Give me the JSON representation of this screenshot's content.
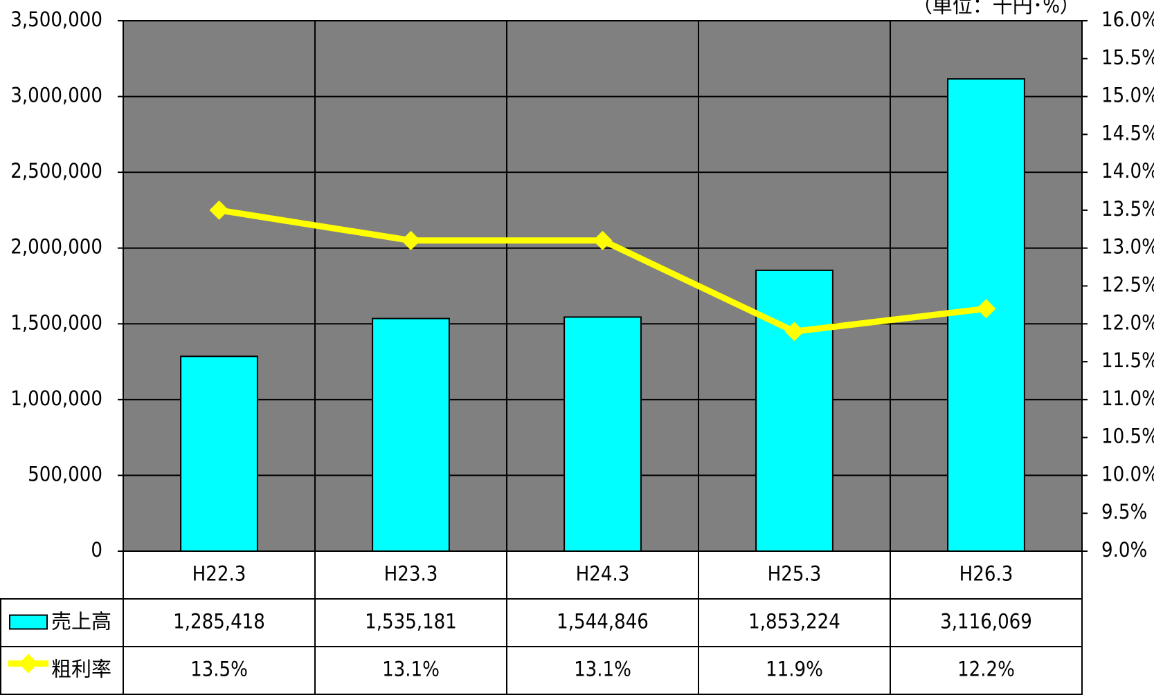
{
  "chart_data": {
    "type": "bar_line_table",
    "annotation": "（単位：千円･%）",
    "categories": [
      "H22.3",
      "H23.3",
      "H24.3",
      "H25.3",
      "H26.3"
    ],
    "series": [
      {
        "name": "売上高",
        "type": "bar",
        "color": "#00ffff",
        "axis": "y",
        "values": [
          1285418,
          1535181,
          1544846,
          1853224,
          3116069
        ],
        "value_labels": [
          "1,285,418",
          "1,535,181",
          "1,544,846",
          "1,853,224",
          "3,116,069"
        ]
      },
      {
        "name": "粗利率",
        "type": "line",
        "color": "#ffff00",
        "axis": "y2",
        "values": [
          13.5,
          13.1,
          13.1,
          11.9,
          12.2
        ],
        "value_labels": [
          "13.5%",
          "13.1%",
          "13.1%",
          "11.9%",
          "12.2%"
        ]
      }
    ],
    "ylim": [
      0,
      3500000
    ],
    "yticks": [
      0,
      {
        "value": 500000,
        "label": "500,000"
      },
      {
        "value": 1000000,
        "label": "1,000,000"
      },
      {
        "value": 1500000,
        "label": "1,500,000"
      },
      {
        "value": 2000000,
        "label": "2,000,000"
      },
      {
        "value": 2500000,
        "label": "2,500,000"
      },
      {
        "value": 3000000,
        "label": "3,000,000"
      },
      {
        "value": 3500000,
        "label": "3,500,000"
      }
    ],
    "y2lim": [
      9.0,
      16.0
    ],
    "y2ticks": [
      {
        "value": 9.0,
        "label": "9.0%"
      },
      {
        "value": 9.5,
        "label": "9.5%"
      },
      {
        "value": 10.0,
        "label": "10.0%"
      },
      {
        "value": 10.5,
        "label": "10.5%"
      },
      {
        "value": 11.0,
        "label": "11.0%"
      },
      {
        "value": 11.5,
        "label": "11.5%"
      },
      {
        "value": 12.0,
        "label": "12.0%"
      },
      {
        "value": 12.5,
        "label": "12.5%"
      },
      {
        "value": 13.0,
        "label": "13.0%"
      },
      {
        "value": 13.5,
        "label": "13.5%"
      },
      {
        "value": 14.0,
        "label": "14.0%"
      },
      {
        "value": 14.5,
        "label": "14.5%"
      },
      {
        "value": 15.0,
        "label": "15.0%"
      },
      {
        "value": 15.5,
        "label": "15.5%"
      },
      {
        "value": 16.0,
        "label": "16.0%"
      }
    ],
    "grid": true,
    "plot_background": "#808080"
  }
}
